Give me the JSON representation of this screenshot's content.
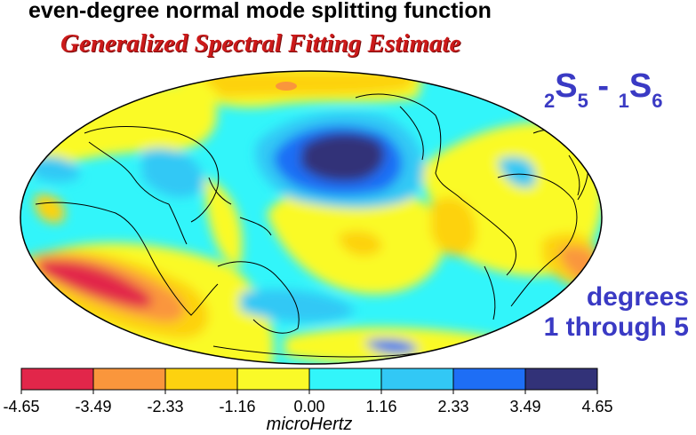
{
  "title": "even-degree normal mode splitting function",
  "subtitle": "Generalized Spectral Fitting Estimate",
  "mode_label": {
    "a_left": "2",
    "a_main": "S",
    "a_right": "5",
    "sep": " - ",
    "b_left": "1",
    "b_main": "S",
    "b_right": "6"
  },
  "degrees_label": [
    "degrees",
    "1 through 5"
  ],
  "colorbar": {
    "ticks": [
      "-4.65",
      "-3.49",
      "-2.33",
      "-1.16",
      "0.00",
      "1.16",
      "2.33",
      "3.49",
      "4.65"
    ],
    "colors": [
      "#e2264a",
      "#fa963c",
      "#fdd20f",
      "#fafa28",
      "#32f5fa",
      "#32c8f5",
      "#1e6ef5",
      "#323278"
    ],
    "unit": "microHertz"
  }
}
